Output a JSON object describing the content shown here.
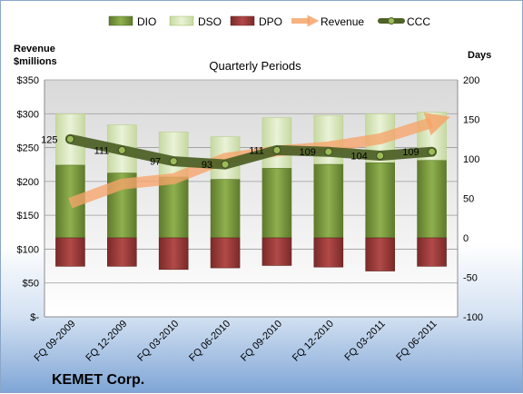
{
  "chart_data": {
    "type": "bar",
    "title": "Quarterly Periods",
    "company": "KEMET Corp.",
    "left_axis": {
      "label_line1": "Revenue",
      "label_line2": "$millions",
      "range": [
        0,
        350
      ],
      "ticks": [
        "$-",
        "$50",
        "$100",
        "$150",
        "$200",
        "$250",
        "$300",
        "$350"
      ]
    },
    "right_axis": {
      "label": "Days",
      "range": [
        -100,
        200
      ],
      "ticks": [
        "-100",
        "-50",
        "0",
        "50",
        "100",
        "150",
        "200"
      ]
    },
    "categories": [
      "FQ 09-2009",
      "FQ 12-2009",
      "FQ 03-2010",
      "FQ 06-2010",
      "FQ 09-2010",
      "FQ 12-2010",
      "FQ 03-2011",
      "FQ 06-2011"
    ],
    "legend": [
      "DIO",
      "DSO",
      "DPO",
      "Revenue",
      "CCC"
    ],
    "series": [
      {
        "name": "DIO",
        "axis": "right",
        "values": [
          92,
          82,
          77,
          74,
          88,
          93,
          95,
          98
        ]
      },
      {
        "name": "DSO",
        "axis": "right",
        "values": [
          65,
          61,
          57,
          54,
          64,
          62,
          62,
          61
        ]
      },
      {
        "name": "DPO",
        "axis": "right",
        "values": [
          -36,
          -36,
          -40,
          -38,
          -35,
          -37,
          -42,
          -36
        ]
      },
      {
        "name": "Revenue",
        "axis": "left",
        "values": [
          168,
          196,
          204,
          234,
          245,
          251,
          263,
          287
        ]
      },
      {
        "name": "CCC",
        "axis": "right",
        "values": [
          125,
          111,
          97,
          93,
          111,
          109,
          104,
          109
        ]
      }
    ],
    "ccc_labels": [
      "125",
      "111",
      "97",
      "93",
      "111",
      "109",
      "104",
      "109"
    ],
    "colors": {
      "DIO": "#77933c",
      "DSO": "#d7e4bd",
      "DPO": "#953735",
      "Revenue": "#f6a46a",
      "CCC": "#4f6228"
    },
    "grid": true,
    "legend_position": "top"
  }
}
